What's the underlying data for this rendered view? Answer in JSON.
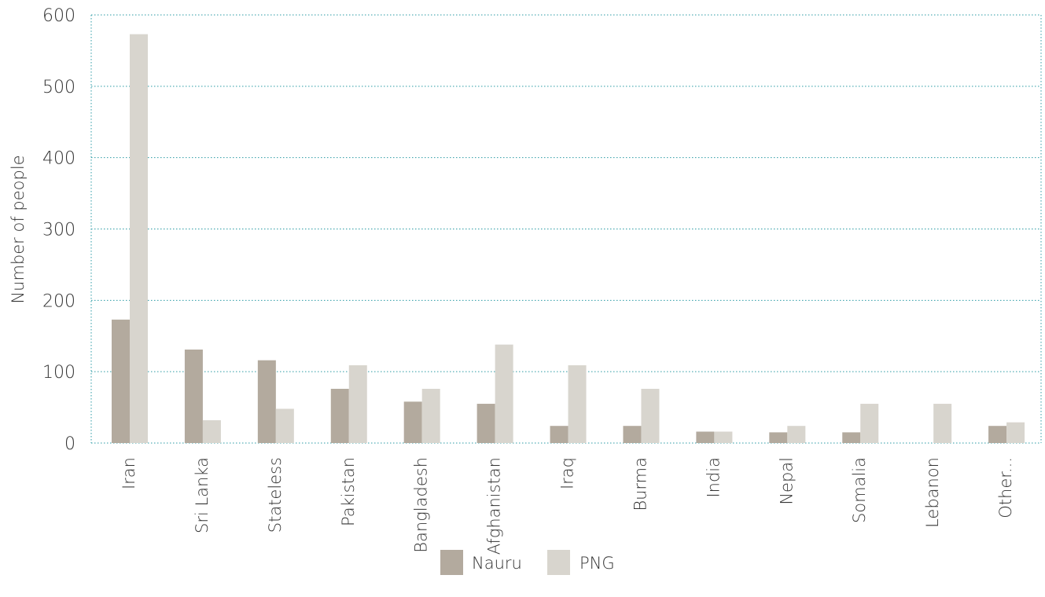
{
  "chart_data": {
    "type": "bar",
    "title": "",
    "xlabel": "",
    "ylabel": "Number of people",
    "ylim": [
      0,
      600
    ],
    "yticks": [
      0,
      100,
      200,
      300,
      400,
      500,
      600
    ],
    "grid": true,
    "legend_position": "bottom",
    "categories": [
      "Iran",
      "Sri Lanka",
      "Stateless",
      "Pakistan",
      "Bangladesh",
      "Afghanistan",
      "Iraq",
      "Burma",
      "India",
      "Nepal",
      "Somalia",
      "Lebanon",
      "Other..."
    ],
    "series": [
      {
        "name": "Nauru",
        "color": "#b3aa9e",
        "values": [
          173,
          131,
          116,
          76,
          58,
          55,
          24,
          24,
          16,
          15,
          15,
          0,
          24
        ]
      },
      {
        "name": "PNG",
        "color": "#d8d5ce",
        "values": [
          573,
          32,
          48,
          109,
          76,
          138,
          109,
          76,
          16,
          24,
          55,
          55,
          29
        ]
      }
    ]
  }
}
